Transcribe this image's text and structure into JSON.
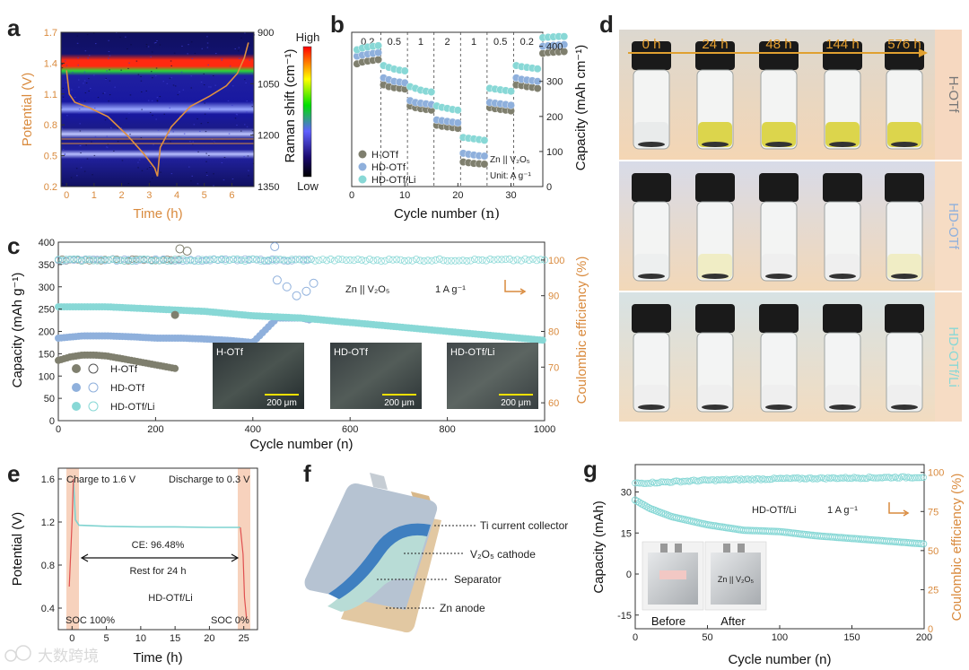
{
  "panel_labels": {
    "a": "a",
    "b": "b",
    "c": "c",
    "d": "d",
    "e": "e",
    "f": "f",
    "g": "g"
  },
  "colors": {
    "orange": "#d98a3d",
    "dark_gray": "#7f7f6e",
    "blue": "#8fb0dc",
    "cyan": "#88d8d6",
    "cyan_line": "#7fd3d0",
    "pink_shade": "#f6c9b6",
    "vial_tint_h": "#d9d23a",
    "vial_tint_hd": "#f0ecc0"
  },
  "panel_a": {
    "xlabel": "Time (h)",
    "ylabel_left": "Potential (V)",
    "ylabel_right": "Raman shift (cm⁻¹)",
    "xticks": [
      "0",
      "1",
      "2",
      "3",
      "4",
      "5",
      "6"
    ],
    "yticks_left": [
      "0.2",
      "0.5",
      "0.8",
      "1.1",
      "1.4",
      "1.7"
    ],
    "yticks_right": [
      "900",
      "1050",
      "1200",
      "1350"
    ],
    "colorbar_high": "High",
    "colorbar_low": "Low"
  },
  "panel_b": {
    "xlabel": "Cycle number",
    "xlabel_suffix": "(n)",
    "ylabel": "Capacity (mAh cm⁻¹)",
    "xticks": [
      "0",
      "10",
      "20",
      "30"
    ],
    "yticks": [
      "0",
      "100",
      "200",
      "300",
      "400"
    ],
    "rates": [
      "0.2",
      "0.5",
      "1",
      "2",
      "1",
      "0.5",
      "0.2"
    ],
    "legend": [
      "H-OTf",
      "HD-OTf",
      "HD-OTf/Li"
    ],
    "note_cell": "Zn || V₂O₅",
    "note_unit": "Unit: A g⁻¹"
  },
  "panel_c": {
    "xlabel": "Cycle number (n)",
    "ylabel_left": "Capacity (mAh g⁻¹)",
    "ylabel_right": "Coulombic efficiency (%)",
    "xticks": [
      "0",
      "200",
      "400",
      "600",
      "800",
      "1000"
    ],
    "yticks_left": [
      "0",
      "50",
      "100",
      "150",
      "200",
      "250",
      "300",
      "350",
      "400"
    ],
    "yticks_right": [
      "60",
      "70",
      "80",
      "90",
      "100"
    ],
    "note": "Zn || V₂O₅",
    "rate": "1 A g⁻¹",
    "legend": [
      "H-OTf",
      "HD-OTf",
      "HD-OTf/Li"
    ],
    "insets": [
      {
        "title": "H-OTf",
        "scale": "200 μm"
      },
      {
        "title": "HD-OTf",
        "scale": "200 μm"
      },
      {
        "title": "HD-OTf/Li",
        "scale": "200 μm"
      }
    ]
  },
  "panel_d": {
    "times": [
      "0 h",
      "24 h",
      "48 h",
      "144 h",
      "576 h"
    ],
    "rows": [
      "H-OTf",
      "HD-OTf",
      "HD-OTf/Li"
    ]
  },
  "panel_e": {
    "xlabel": "Time (h)",
    "ylabel": "Potential (V)",
    "xticks": [
      "0",
      "5",
      "10",
      "15",
      "20",
      "25"
    ],
    "yticks": [
      "0.4",
      "0.8",
      "1.2",
      "1.6"
    ],
    "charge": "Charge to 1.6 V",
    "discharge": "Discharge to 0.3 V",
    "ce": "CE: 96.48%",
    "rest": "Rest for 24 h",
    "label": "HD-OTf/Li",
    "soc_start": "SOC 100%",
    "soc_end": "SOC 0%"
  },
  "panel_f": {
    "labels": [
      "Ti current collector",
      "V₂O₅ cathode",
      "Separator",
      "Zn anode"
    ]
  },
  "panel_g": {
    "xlabel": "Cycle number (n)",
    "ylabel_left": "Capacity (mAh)",
    "ylabel_right": "Coulombic efficiency (%)",
    "xticks": [
      "0",
      "50",
      "100",
      "150",
      "200"
    ],
    "yticks_left": [
      "-15",
      "0",
      "15",
      "30"
    ],
    "yticks_right": [
      "0",
      "25",
      "50",
      "75",
      "100"
    ],
    "label": "HD-OTf/Li",
    "rate": "1 A g⁻¹",
    "photo_before": "Before",
    "photo_after": "After",
    "photo_after_text": "Zn || V₂O₅"
  },
  "watermark": "大数跨境",
  "chart_data": [
    {
      "type": "line",
      "id": "a",
      "title": "",
      "xlabel": "Time (h)",
      "ylabel": "Potential (V)",
      "xlim": [
        -0.2,
        6.8
      ],
      "ylim": [
        0.2,
        1.7
      ],
      "series": [
        {
          "name": "Potential",
          "x": [
            0.0,
            0.1,
            0.3,
            0.8,
            1.5,
            2.2,
            2.8,
            3.2,
            3.3,
            3.4,
            3.8,
            4.5,
            5.2,
            5.8,
            6.2,
            6.45,
            6.6
          ],
          "y": [
            1.33,
            1.1,
            1.02,
            0.97,
            0.88,
            0.7,
            0.52,
            0.38,
            0.3,
            0.58,
            0.78,
            0.98,
            1.08,
            1.18,
            1.3,
            1.45,
            1.6
          ]
        }
      ]
    },
    {
      "type": "scatter",
      "id": "b",
      "xlabel": "Cycle number (n)",
      "ylabel": "Capacity (mAh cm⁻¹)",
      "xlim": [
        0,
        36
      ],
      "ylim": [
        0,
        440
      ],
      "series": [
        {
          "name": "H-OTf",
          "values": [
            350,
            355,
            358,
            360,
            362,
            290,
            285,
            282,
            280,
            278,
            230,
            225,
            222,
            220,
            218,
            175,
            172,
            170,
            168,
            166,
            70,
            68,
            66,
            65,
            64,
            225,
            222,
            220,
            218,
            216,
            290,
            288,
            285,
            283,
            280,
            380,
            382,
            383,
            384,
            385
          ]
        },
        {
          "name": "HD-OTf",
          "values": [
            372,
            375,
            378,
            380,
            382,
            310,
            305,
            300,
            298,
            296,
            245,
            240,
            238,
            236,
            234,
            190,
            188,
            186,
            184,
            182,
            95,
            92,
            90,
            88,
            87,
            240,
            238,
            236,
            234,
            232,
            310,
            306,
            304,
            302,
            300,
            400,
            402,
            403,
            404,
            405
          ]
        },
        {
          "name": "HD-OTf/Li",
          "values": [
            390,
            395,
            398,
            400,
            402,
            345,
            340,
            335,
            332,
            330,
            285,
            280,
            275,
            272,
            270,
            230,
            226,
            223,
            220,
            218,
            140,
            138,
            136,
            134,
            132,
            280,
            278,
            276,
            274,
            272,
            345,
            342,
            340,
            338,
            336,
            425,
            426,
            427,
            428,
            428
          ]
        }
      ]
    },
    {
      "type": "scatter",
      "id": "c",
      "xlabel": "Cycle number (n)",
      "ylabel": "Capacity (mAh g⁻¹)",
      "xlim": [
        0,
        1000
      ],
      "ylim": [
        0,
        400
      ],
      "series": [
        {
          "name": "H-OTf",
          "x": [
            0,
            25,
            50,
            75,
            100,
            125,
            150,
            175,
            200,
            225,
            245
          ],
          "values": [
            135,
            143,
            147,
            147,
            145,
            140,
            135,
            130,
            125,
            120,
            116
          ]
        },
        {
          "name": "HD-OTf",
          "x": [
            0,
            50,
            100,
            150,
            200,
            250,
            300,
            350,
            400,
            450,
            500,
            520
          ],
          "values": [
            185,
            190,
            190,
            188,
            185,
            185,
            183,
            180,
            175,
            230,
            230,
            225
          ]
        },
        {
          "name": "HD-OTf/Li",
          "x": [
            0,
            100,
            200,
            300,
            400,
            500,
            600,
            700,
            800,
            900,
            1000
          ],
          "values": [
            255,
            255,
            250,
            245,
            235,
            230,
            220,
            210,
            200,
            190,
            180
          ]
        }
      ]
    },
    {
      "type": "line",
      "id": "e",
      "xlabel": "Time (h)",
      "ylabel": "Potential (V)",
      "xlim": [
        -2,
        27
      ],
      "ylim": [
        0.2,
        1.7
      ],
      "series": [
        {
          "name": "HD-OTf/Li",
          "x": [
            -0.4,
            0,
            0.2,
            0.5,
            1,
            5,
            10,
            15,
            20,
            24.5,
            24.9,
            25.1,
            25.4
          ],
          "y": [
            0.6,
            1.2,
            1.6,
            1.22,
            1.17,
            1.16,
            1.155,
            1.155,
            1.15,
            1.15,
            0.9,
            0.5,
            0.3
          ]
        }
      ]
    },
    {
      "type": "scatter",
      "id": "g",
      "xlabel": "Cycle number (n)",
      "ylabel": "Capacity (mAh)",
      "xlim": [
        0,
        200
      ],
      "ylim": [
        -20,
        40
      ],
      "series": [
        {
          "name": "HD-OTf/Li",
          "x": [
            0,
            10,
            25,
            50,
            75,
            100,
            125,
            150,
            175,
            200
          ],
          "values": [
            27,
            24,
            21,
            18,
            16,
            15.5,
            14,
            13,
            12,
            11
          ]
        },
        {
          "name": "CE",
          "x": [
            0,
            50,
            100,
            150,
            200
          ],
          "values": [
            93,
            95,
            96,
            96.5,
            97
          ]
        }
      ]
    }
  ]
}
